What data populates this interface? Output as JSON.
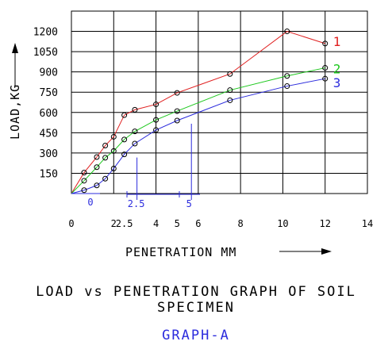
{
  "chart_data": {
    "type": "line",
    "title": "LOAD vs PENETRATION GRAPH OF SOIL SPECIMEN",
    "subtitle": "GRAPH-A",
    "xlabel": "PENETRATION MM",
    "ylabel": "LOAD,KG",
    "xlim": [
      0,
      14
    ],
    "ylim": [
      0,
      1350
    ],
    "grid": true,
    "x_ticks": [
      {
        "label": "0",
        "value": 0
      },
      {
        "label": "2",
        "value": 2
      },
      {
        "label": "2.5",
        "value": 2.5
      },
      {
        "label": "4",
        "value": 4
      },
      {
        "label": "5",
        "value": 5
      },
      {
        "label": "6",
        "value": 6
      },
      {
        "label": "8",
        "value": 8
      },
      {
        "label": "10",
        "value": 10
      },
      {
        "label": "12",
        "value": 12
      },
      {
        "label": "14",
        "value": 14
      }
    ],
    "y_ticks": [
      {
        "label": "150",
        "value": 150
      },
      {
        "label": "300",
        "value": 300
      },
      {
        "label": "450",
        "value": 450
      },
      {
        "label": "600",
        "value": 600
      },
      {
        "label": "750",
        "value": 750
      },
      {
        "label": "900",
        "value": 900
      },
      {
        "label": "1050",
        "value": 1050
      },
      {
        "label": "1200",
        "value": 1200
      }
    ],
    "origin_label": "0",
    "marker_labels": [
      {
        "label": "2.5",
        "value": 2.5
      },
      {
        "label": "5",
        "value": 5
      }
    ],
    "series": [
      {
        "name": "1",
        "color": "#e02020",
        "x": [
          0.6,
          1.2,
          1.6,
          2.0,
          2.5,
          3.0,
          4.0,
          5.0,
          7.5,
          10.2,
          12.0
        ],
        "y": [
          155,
          270,
          355,
          420,
          580,
          620,
          660,
          745,
          885,
          1200,
          1110
        ]
      },
      {
        "name": "2",
        "color": "#1ec81e",
        "x": [
          0.6,
          1.2,
          1.6,
          2.0,
          2.5,
          3.0,
          4.0,
          5.0,
          7.5,
          10.2,
          12.0
        ],
        "y": [
          95,
          195,
          265,
          315,
          400,
          460,
          545,
          610,
          765,
          870,
          930
        ]
      },
      {
        "name": "3",
        "color": "#2b2bdd",
        "x": [
          0.6,
          1.2,
          1.6,
          2.0,
          2.5,
          3.0,
          4.0,
          5.0,
          7.5,
          10.2,
          12.0
        ],
        "y": [
          25,
          60,
          110,
          185,
          290,
          370,
          470,
          540,
          690,
          795,
          850
        ]
      }
    ]
  }
}
